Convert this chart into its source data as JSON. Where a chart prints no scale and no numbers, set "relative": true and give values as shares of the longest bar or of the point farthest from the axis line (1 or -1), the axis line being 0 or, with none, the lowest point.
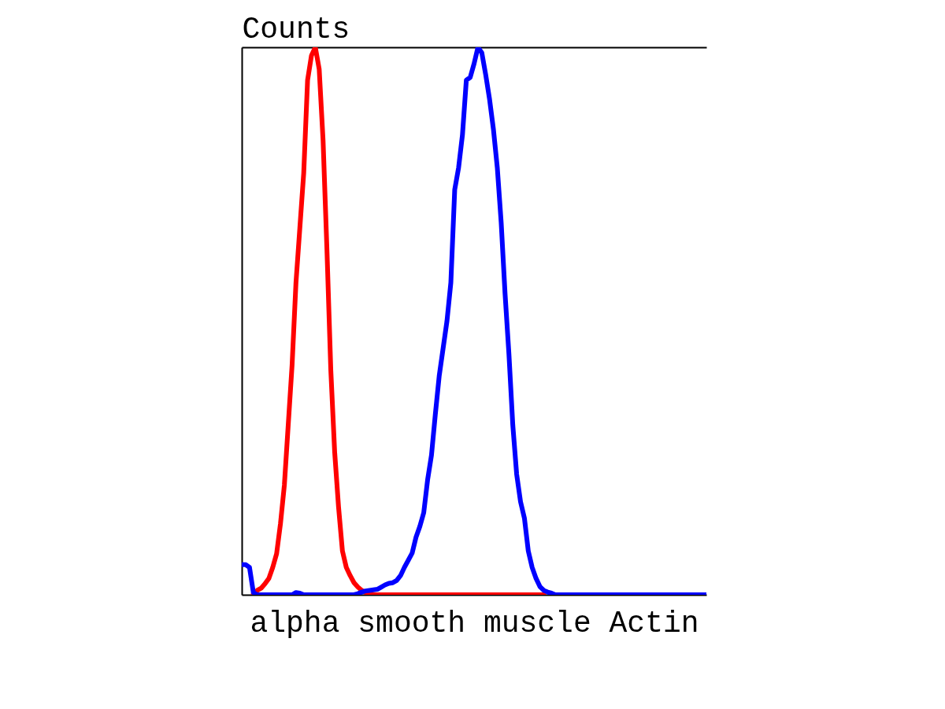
{
  "chart_data": {
    "type": "line",
    "ylabel": "Counts",
    "xlabel": "alpha smooth muscle Actin",
    "relative": true,
    "categories": [
      null,
      null,
      null,
      null,
      null,
      null,
      null,
      null,
      null,
      null,
      null,
      null,
      null,
      null,
      null,
      null,
      null,
      null,
      null,
      null,
      null,
      null,
      null,
      null,
      null,
      null,
      null,
      null,
      null,
      null,
      null,
      null,
      null,
      null,
      null,
      null,
      null,
      null,
      null,
      null,
      null,
      null,
      null,
      null,
      null,
      null,
      null,
      null,
      null,
      null,
      null,
      null,
      null,
      null,
      null,
      null,
      null,
      null,
      null,
      null,
      null,
      null,
      null,
      null,
      null,
      null,
      null,
      null,
      null,
      null,
      null,
      null,
      null,
      null,
      null,
      null,
      null,
      null,
      null,
      null,
      null,
      null,
      null,
      null,
      null,
      null,
      null,
      null,
      null,
      null,
      null,
      null,
      null,
      null,
      null,
      null,
      null,
      null,
      null,
      null,
      null,
      null,
      null,
      null,
      null,
      null,
      null,
      null,
      null,
      null,
      null,
      null,
      null,
      null,
      null,
      null,
      null,
      null,
      null,
      null,
      null
    ],
    "series": [
      {
        "color": "#ff0000",
        "values": [
          null,
          null,
          null,
          0.002,
          0.008,
          0.012,
          0.02,
          0.03,
          0.05,
          0.075,
          0.13,
          0.2,
          0.31,
          0.42,
          0.57,
          0.67,
          0.77,
          0.94,
          0.985,
          1,
          0.96,
          0.83,
          0.63,
          0.41,
          0.26,
          0.16,
          0.08,
          0.05,
          0.035,
          0.022,
          0.014,
          0.008,
          0.004,
          0.002,
          0,
          0,
          0,
          0,
          0,
          0,
          0,
          0,
          0,
          0,
          0,
          0,
          0,
          0,
          0,
          0,
          0,
          0,
          0,
          0,
          0,
          0,
          0,
          0,
          0,
          0,
          0,
          0,
          0,
          0,
          0,
          0,
          0,
          0,
          0,
          0,
          0,
          0,
          0,
          0,
          0,
          0,
          0,
          0,
          0,
          null,
          null,
          null,
          null,
          null,
          null,
          null,
          null,
          null,
          null,
          null,
          null,
          null,
          null,
          null,
          null,
          null,
          null,
          null,
          null,
          null,
          null,
          null,
          null,
          null,
          null,
          null,
          null,
          null,
          null,
          null,
          null,
          null,
          null,
          null,
          null,
          null,
          null,
          null,
          null,
          null,
          null
        ]
      },
      {
        "color": "#0000ff",
        "values": [
          0.055,
          0.055,
          0.05,
          0.004,
          0,
          0,
          0,
          0,
          0,
          0,
          0,
          0,
          0,
          0,
          0.004,
          0.003,
          0,
          0,
          0,
          0,
          0,
          0,
          0,
          0,
          0,
          0,
          0,
          0,
          0,
          0,
          0.002,
          0.005,
          0.007,
          0.008,
          0.009,
          0.01,
          0.014,
          0.018,
          0.021,
          0.022,
          0.026,
          0.035,
          0.05,
          0.063,
          0.076,
          0.105,
          0.125,
          0.15,
          0.21,
          0.255,
          0.33,
          0.4,
          0.45,
          0.5,
          0.57,
          0.74,
          0.78,
          0.84,
          0.94,
          0.945,
          0.97,
          1,
          0.99,
          0.95,
          0.905,
          0.85,
          0.78,
          0.68,
          0.55,
          0.44,
          0.31,
          0.22,
          0.17,
          0.14,
          0.08,
          0.05,
          0.03,
          0.015,
          0.008,
          0.005,
          0.003,
          0,
          0,
          0,
          0,
          0,
          0,
          0,
          0,
          0,
          0,
          0,
          0,
          0,
          0,
          0,
          0,
          0,
          0,
          0,
          0,
          0,
          0,
          0,
          0,
          0,
          0,
          0,
          0,
          0,
          0,
          0,
          0,
          0,
          0,
          0,
          0,
          0,
          0,
          0,
          0
        ]
      }
    ]
  }
}
